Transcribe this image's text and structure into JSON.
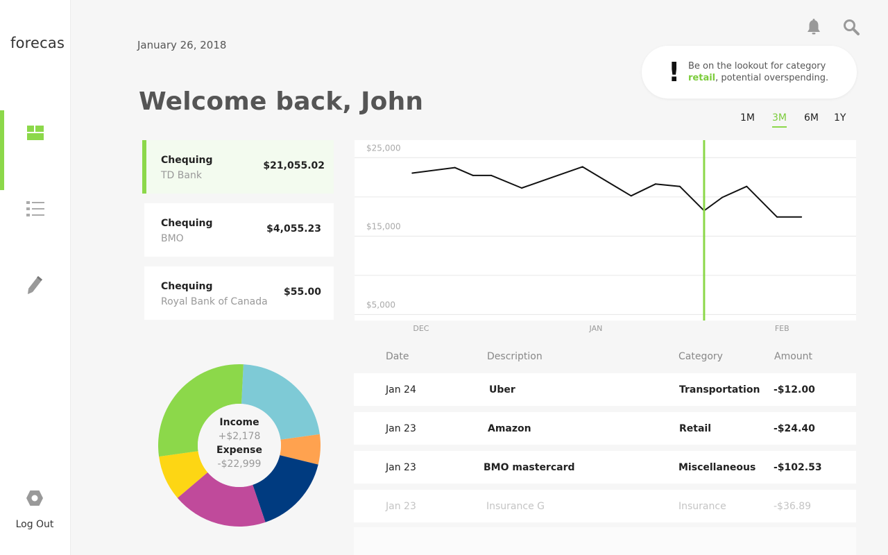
{
  "sidebar": {
    "brand": "forecas",
    "logout_label": "Log Out"
  },
  "header": {
    "date": "January 26, 2018",
    "welcome": "Welcome back, John"
  },
  "alert": {
    "prefix": "Be on the lookout for category",
    "highlight": "retail",
    "suffix": ", potential overspending.",
    "highlight_color": "#7ccc3c"
  },
  "ranges": [
    {
      "label": "1M",
      "selected": false
    },
    {
      "label": "3M",
      "selected": true
    },
    {
      "label": "6M",
      "selected": false
    },
    {
      "label": "1Y",
      "selected": false
    }
  ],
  "accounts": [
    {
      "type": "Chequing",
      "bank": "TD Bank",
      "balance": "$21,055.02",
      "selected": true
    },
    {
      "type": "Chequing",
      "bank": "BMO",
      "balance": "$4,055.23",
      "selected": false
    },
    {
      "type": "Chequing",
      "bank": "Royal Bank of Canada",
      "balance": "$55.00",
      "selected": false
    }
  ],
  "chart_data": {
    "type": "line",
    "ytick_labels": [
      "$25,000",
      "$15,000",
      "$5,000"
    ],
    "yticks": [
      25000,
      15000,
      5000
    ],
    "ylim": [
      3000,
      26000
    ],
    "xtick_labels": [
      "DEC",
      "JAN",
      "FEB"
    ],
    "x": [
      0,
      7,
      10,
      13,
      18,
      28,
      36,
      40,
      44,
      48,
      51,
      55,
      60,
      64
    ],
    "values": [
      21800,
      22500,
      21500,
      21500,
      19900,
      22600,
      18900,
      20400,
      20100,
      17000,
      18700,
      20100,
      16200,
      16200
    ],
    "xlim": [
      -9.5,
      73
    ],
    "marker_x": 48,
    "xtick_positions": [
      1.5,
      30.5,
      61
    ],
    "line_color": "#111111",
    "marker_color": "#8cd84a"
  },
  "donut": {
    "income_label": "Income",
    "income_value": "+$2,178",
    "expense_label": "Expense",
    "expense_value": "-$22,999",
    "segments": [
      {
        "value": 22,
        "color": "#7ecad6"
      },
      {
        "value": 6,
        "color": "#ffa24f"
      },
      {
        "value": 16,
        "color": "#003b80"
      },
      {
        "value": 19,
        "color": "#c04a9b"
      },
      {
        "value": 9,
        "color": "#fdd614"
      },
      {
        "value": 28,
        "color": "#8cd84a"
      }
    ]
  },
  "table": {
    "headers": {
      "date": "Date",
      "description": "Description",
      "category": "Category",
      "amount": "Amount"
    },
    "rows": [
      {
        "date": "Jan 24",
        "description": "Uber",
        "category": "Transportation",
        "amount": "-$12.00"
      },
      {
        "date": "Jan 23",
        "description": "Amazon",
        "category": "Retail",
        "amount": "-$24.40"
      },
      {
        "date": "Jan 23",
        "description": "BMO mastercard",
        "category": "Miscellaneous",
        "amount": "-$102.53"
      },
      {
        "date": "Jan 23",
        "description": "Insurance G",
        "category": "Insurance",
        "amount": "-$36.89"
      }
    ]
  },
  "icons": {
    "dashboard": "dashboard-icon",
    "list": "list-icon",
    "edit": "pencil-icon",
    "logout": "hexagon-icon",
    "bell": "bell-icon",
    "search": "search-icon"
  },
  "colors": {
    "accent": "#8cd84a"
  }
}
